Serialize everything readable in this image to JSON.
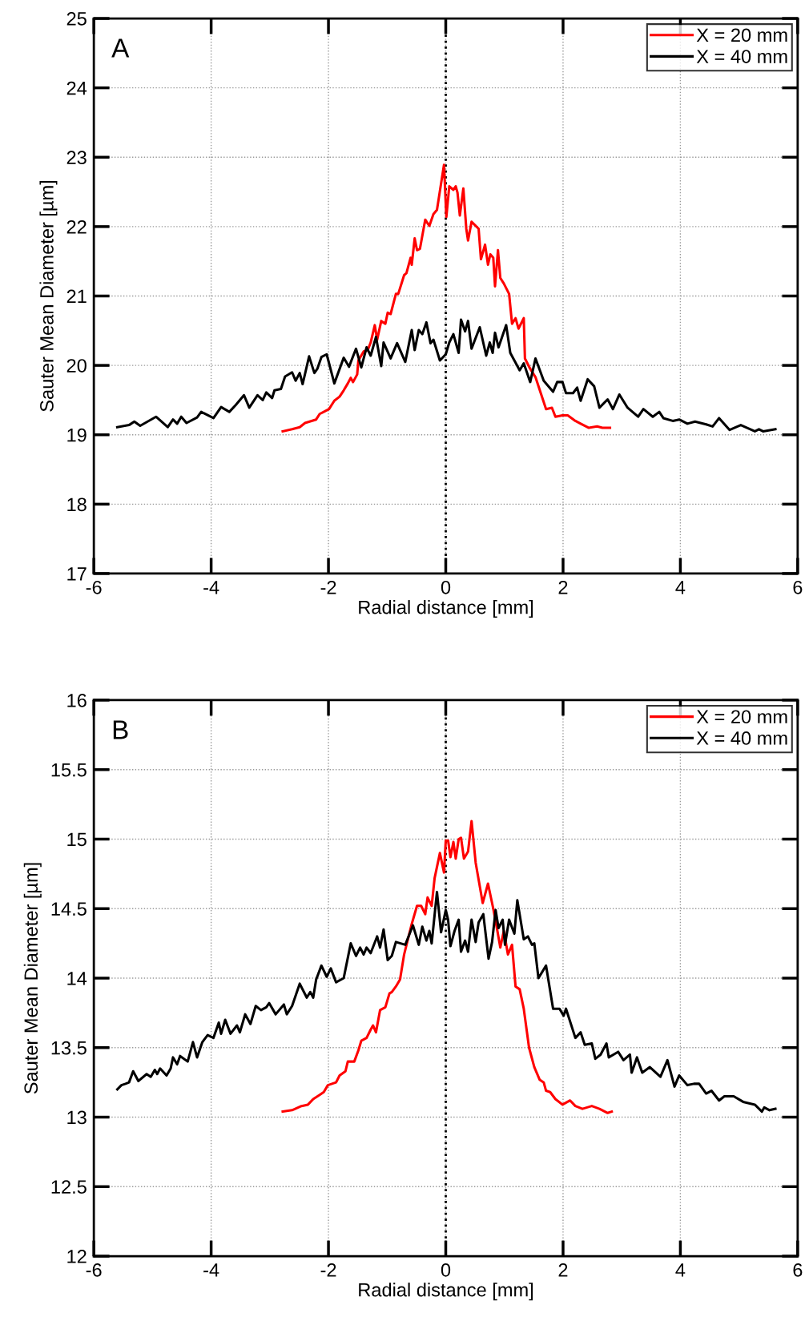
{
  "chart_data": [
    {
      "type": "line",
      "xlabel": "Radial distance [mm]",
      "ylabel": "Sauter Mean Diameter [µm]",
      "annotations": [
        "A"
      ],
      "xlim": [
        -6,
        6
      ],
      "xticks": [
        -6,
        -4,
        -2,
        0,
        2,
        4,
        6
      ],
      "ylim": [
        17,
        25
      ],
      "yticks": [
        17,
        18,
        19,
        20,
        21,
        22,
        23,
        24,
        25
      ],
      "grid": true,
      "legend": "top right",
      "line_style": "solid",
      "marker": "none",
      "ref_lines": [
        {
          "axis": "x",
          "value": 0,
          "color": "#000000",
          "line_style": "dotted"
        }
      ],
      "series": [
        {
          "name": "X = 20 mm",
          "color": "#ff0000",
          "x": [
            -2.78,
            -2.62,
            -2.49,
            -2.4,
            -2.21,
            -2.15,
            -2.08,
            -1.99,
            -1.9,
            -1.81,
            -1.74,
            -1.67,
            -1.62,
            -1.58,
            -1.51,
            -1.49,
            -1.4,
            -1.33,
            -1.28,
            -1.21,
            -1.17,
            -1.1,
            -1.03,
            -0.99,
            -0.94,
            -0.85,
            -0.81,
            -0.71,
            -0.67,
            -0.6,
            -0.58,
            -0.53,
            -0.49,
            -0.44,
            -0.35,
            -0.28,
            -0.21,
            -0.15,
            -0.03,
            0.01,
            0.06,
            0.13,
            0.17,
            0.2,
            0.24,
            0.3,
            0.35,
            0.38,
            0.44,
            0.56,
            0.6,
            0.67,
            0.72,
            0.76,
            0.81,
            0.84,
            0.89,
            0.93,
            0.99,
            1.08,
            1.13,
            1.19,
            1.24,
            1.33,
            1.35,
            1.44,
            1.53,
            1.62,
            1.71,
            1.81,
            1.87,
            1.99,
            2.08,
            2.21,
            2.3,
            2.44,
            2.58,
            2.67,
            2.8
          ],
          "values": [
            19.05,
            19.08,
            19.11,
            19.17,
            19.22,
            19.3,
            19.33,
            19.37,
            19.49,
            19.55,
            19.64,
            19.74,
            19.82,
            19.76,
            19.87,
            20.07,
            20.2,
            20.22,
            20.33,
            20.58,
            20.37,
            20.64,
            20.6,
            20.76,
            20.74,
            21.03,
            21.03,
            21.3,
            21.33,
            21.55,
            21.45,
            21.83,
            21.66,
            21.68,
            22.1,
            22.01,
            22.18,
            22.24,
            22.89,
            22.14,
            22.58,
            22.53,
            22.58,
            22.49,
            22.16,
            22.55,
            21.97,
            21.8,
            22.07,
            21.97,
            21.53,
            21.74,
            21.45,
            21.6,
            21.55,
            21.14,
            21.66,
            21.26,
            21.18,
            21.03,
            20.6,
            20.68,
            20.53,
            20.68,
            20.1,
            19.95,
            19.83,
            19.6,
            19.37,
            19.39,
            19.26,
            19.28,
            19.28,
            19.2,
            19.16,
            19.1,
            19.12,
            19.1,
            19.1
          ]
        },
        {
          "name": "X = 40 mm",
          "color": "#000000",
          "x": [
            -5.6,
            -5.4,
            -5.31,
            -5.21,
            -4.94,
            -4.74,
            -4.65,
            -4.58,
            -4.51,
            -4.42,
            -4.24,
            -4.17,
            -3.96,
            -3.83,
            -3.69,
            -3.58,
            -3.44,
            -3.35,
            -3.21,
            -3.12,
            -3.06,
            -2.96,
            -2.92,
            -2.81,
            -2.74,
            -2.62,
            -2.56,
            -2.49,
            -2.44,
            -2.33,
            -2.24,
            -2.19,
            -2.12,
            -2.03,
            -1.9,
            -1.74,
            -1.65,
            -1.53,
            -1.44,
            -1.35,
            -1.28,
            -1.19,
            -1.1,
            -1.06,
            -0.94,
            -0.83,
            -0.69,
            -0.58,
            -0.53,
            -0.46,
            -0.4,
            -0.33,
            -0.26,
            -0.21,
            -0.1,
            0,
            0.06,
            0.13,
            0.22,
            0.26,
            0.33,
            0.38,
            0.44,
            0.58,
            0.69,
            0.75,
            0.8,
            0.84,
            0.9,
            1.03,
            1.1,
            1.26,
            1.33,
            1.44,
            1.53,
            1.67,
            1.83,
            1.9,
            1.99,
            2.05,
            2.17,
            2.24,
            2.3,
            2.42,
            2.53,
            2.62,
            2.76,
            2.85,
            2.96,
            3.1,
            3.28,
            3.37,
            3.53,
            3.64,
            3.71,
            3.87,
            3.98,
            4.12,
            4.25,
            4.44,
            4.55,
            4.66,
            4.84,
            5.03,
            5.27,
            5.34,
            5.41,
            5.62
          ],
          "values": [
            19.11,
            19.14,
            19.19,
            19.13,
            19.26,
            19.11,
            19.22,
            19.16,
            19.26,
            19.17,
            19.25,
            19.33,
            19.24,
            19.4,
            19.33,
            19.43,
            19.57,
            19.39,
            19.57,
            19.5,
            19.61,
            19.53,
            19.64,
            19.66,
            19.84,
            19.9,
            19.78,
            19.89,
            19.73,
            20.13,
            19.89,
            19.95,
            20.12,
            20.16,
            19.74,
            20.11,
            19.98,
            20.24,
            19.97,
            20.26,
            20.14,
            20.41,
            19.99,
            20.33,
            20.1,
            20.32,
            20.05,
            20.51,
            20.22,
            20.51,
            20.45,
            20.62,
            20.32,
            20.37,
            20.07,
            20.16,
            20.33,
            20.45,
            20.18,
            20.66,
            20.49,
            20.64,
            20.24,
            20.55,
            20.14,
            20.33,
            20.18,
            20.47,
            20.26,
            20.58,
            20.18,
            19.93,
            20.03,
            19.76,
            20.1,
            19.78,
            19.62,
            19.76,
            19.76,
            19.6,
            19.6,
            19.68,
            19.49,
            19.8,
            19.7,
            19.39,
            19.51,
            19.37,
            19.58,
            19.39,
            19.26,
            19.37,
            19.26,
            19.33,
            19.24,
            19.2,
            19.22,
            19.16,
            19.19,
            19.15,
            19.12,
            19.24,
            19.07,
            19.14,
            19.05,
            19.08,
            19.05,
            19.08
          ]
        }
      ]
    },
    {
      "type": "line",
      "xlabel": "Radial distance [mm]",
      "ylabel": "Sauter Mean Diameter [µm]",
      "annotations": [
        "B"
      ],
      "xlim": [
        -6,
        6
      ],
      "xticks": [
        -6,
        -4,
        -2,
        0,
        2,
        4,
        6
      ],
      "ylim": [
        12,
        16
      ],
      "yticks": [
        12,
        12.5,
        13,
        13.5,
        14,
        14.5,
        15,
        15.5,
        16
      ],
      "grid": true,
      "legend": "top right",
      "line_style": "solid",
      "marker": "none",
      "ref_lines": [
        {
          "axis": "x",
          "value": 0,
          "color": "#000000",
          "line_style": "dotted"
        }
      ],
      "series": [
        {
          "name": "X = 20 mm",
          "color": "#ff0000",
          "x": [
            -2.78,
            -2.62,
            -2.46,
            -2.35,
            -2.26,
            -2.15,
            -2.08,
            -2.01,
            -1.87,
            -1.81,
            -1.71,
            -1.67,
            -1.56,
            -1.49,
            -1.44,
            -1.35,
            -1.28,
            -1.24,
            -1.19,
            -1.12,
            -1.03,
            -0.96,
            -0.92,
            -0.85,
            -0.78,
            -0.71,
            -0.58,
            -0.49,
            -0.42,
            -0.35,
            -0.31,
            -0.24,
            -0.19,
            -0.1,
            -0.03,
            0,
            0.04,
            0.08,
            0.13,
            0.17,
            0.22,
            0.26,
            0.31,
            0.38,
            0.44,
            0.51,
            0.63,
            0.72,
            0.81,
            0.88,
            0.93,
            0.99,
            1.06,
            1.13,
            1.19,
            1.26,
            1.33,
            1.42,
            1.51,
            1.6,
            1.67,
            1.71,
            1.78,
            1.87,
            1.99,
            2.12,
            2.21,
            2.33,
            2.49,
            2.62,
            2.76,
            2.83
          ],
          "values": [
            13.04,
            13.05,
            13.08,
            13.09,
            13.13,
            13.16,
            13.18,
            13.23,
            13.25,
            13.3,
            13.33,
            13.4,
            13.4,
            13.48,
            13.55,
            13.57,
            13.63,
            13.66,
            13.61,
            13.77,
            13.79,
            13.89,
            13.9,
            13.94,
            13.99,
            14.17,
            14.39,
            14.52,
            14.52,
            14.46,
            14.58,
            14.52,
            14.72,
            14.9,
            14.76,
            14.99,
            14.99,
            14.87,
            14.98,
            14.86,
            15,
            15.01,
            14.86,
            14.91,
            15.13,
            14.83,
            14.54,
            14.68,
            14.5,
            14.34,
            14.22,
            14.34,
            14.17,
            14.24,
            13.94,
            13.92,
            13.78,
            13.5,
            13.36,
            13.27,
            13.25,
            13.19,
            13.18,
            13.13,
            13.09,
            13.12,
            13.08,
            13.06,
            13.08,
            13.06,
            13.03,
            13.04
          ]
        },
        {
          "name": "X = 40 mm",
          "color": "#000000",
          "x": [
            -5.6,
            -5.53,
            -5.46,
            -5.4,
            -5.33,
            -5.24,
            -5.1,
            -5.03,
            -4.96,
            -4.92,
            -4.87,
            -4.76,
            -4.69,
            -4.65,
            -4.58,
            -4.53,
            -4.4,
            -4.31,
            -4.24,
            -4.15,
            -4.06,
            -3.96,
            -3.87,
            -3.83,
            -3.76,
            -3.67,
            -3.56,
            -3.51,
            -3.42,
            -3.33,
            -3.24,
            -3.15,
            -3.06,
            -3.01,
            -2.9,
            -2.76,
            -2.71,
            -2.62,
            -2.49,
            -2.37,
            -2.31,
            -2.26,
            -2.21,
            -2.12,
            -2.03,
            -1.96,
            -1.87,
            -1.74,
            -1.62,
            -1.53,
            -1.46,
            -1.4,
            -1.35,
            -1.28,
            -1.17,
            -1.12,
            -1.06,
            -0.99,
            -0.92,
            -0.85,
            -0.69,
            -0.56,
            -0.46,
            -0.4,
            -0.33,
            -0.28,
            -0.24,
            -0.15,
            -0.08,
            0,
            0.04,
            0.08,
            0.15,
            0.22,
            0.26,
            0.33,
            0.38,
            0.44,
            0.51,
            0.56,
            0.64,
            0.73,
            0.79,
            0.85,
            0.9,
            0.97,
            1.01,
            1.08,
            1.17,
            1.22,
            1.33,
            1.4,
            1.47,
            1.51,
            1.58,
            1.71,
            1.83,
            1.94,
            2.01,
            2.05,
            2.21,
            2.3,
            2.37,
            2.49,
            2.55,
            2.64,
            2.74,
            2.78,
            2.94,
            3.03,
            3.14,
            3.17,
            3.26,
            3.35,
            3.48,
            3.66,
            3.78,
            3.9,
            3.98,
            4.12,
            4.23,
            4.32,
            4.44,
            4.53,
            4.66,
            4.75,
            4.91,
            5.07,
            5.27,
            5.39,
            5.43,
            5.52,
            5.62
          ],
          "values": [
            13.2,
            13.23,
            13.24,
            13.25,
            13.33,
            13.26,
            13.31,
            13.29,
            13.34,
            13.31,
            13.35,
            13.3,
            13.35,
            13.43,
            13.38,
            13.44,
            13.4,
            13.54,
            13.43,
            13.54,
            13.59,
            13.57,
            13.68,
            13.6,
            13.7,
            13.6,
            13.66,
            13.61,
            13.74,
            13.67,
            13.8,
            13.77,
            13.79,
            13.82,
            13.74,
            13.81,
            13.74,
            13.8,
            13.96,
            13.86,
            13.9,
            13.86,
            13.99,
            14.09,
            14.01,
            14.07,
            13.97,
            14,
            14.25,
            14.16,
            14.22,
            14.17,
            14.22,
            14.18,
            14.3,
            14.22,
            14.35,
            14.13,
            14.16,
            14.26,
            14.24,
            14.38,
            14.24,
            14.37,
            14.27,
            14.34,
            14.25,
            14.62,
            14.33,
            14.49,
            14.42,
            14.23,
            14.34,
            14.42,
            14.19,
            14.27,
            14.19,
            14.42,
            14.26,
            14.4,
            14.46,
            14.14,
            14.26,
            14.49,
            14.36,
            14.42,
            14.24,
            14.42,
            14.32,
            14.56,
            14.28,
            14.3,
            14.24,
            14.25,
            14,
            14.09,
            13.78,
            13.78,
            13.73,
            13.78,
            13.57,
            13.61,
            13.52,
            13.53,
            13.42,
            13.45,
            13.53,
            13.43,
            13.47,
            13.41,
            13.45,
            13.32,
            13.43,
            13.32,
            13.36,
            13.29,
            13.41,
            13.22,
            13.3,
            13.23,
            13.24,
            13.24,
            13.17,
            13.19,
            13.12,
            13.15,
            13.15,
            13.11,
            13.09,
            13.04,
            13.07,
            13.05,
            13.06
          ]
        }
      ]
    }
  ]
}
